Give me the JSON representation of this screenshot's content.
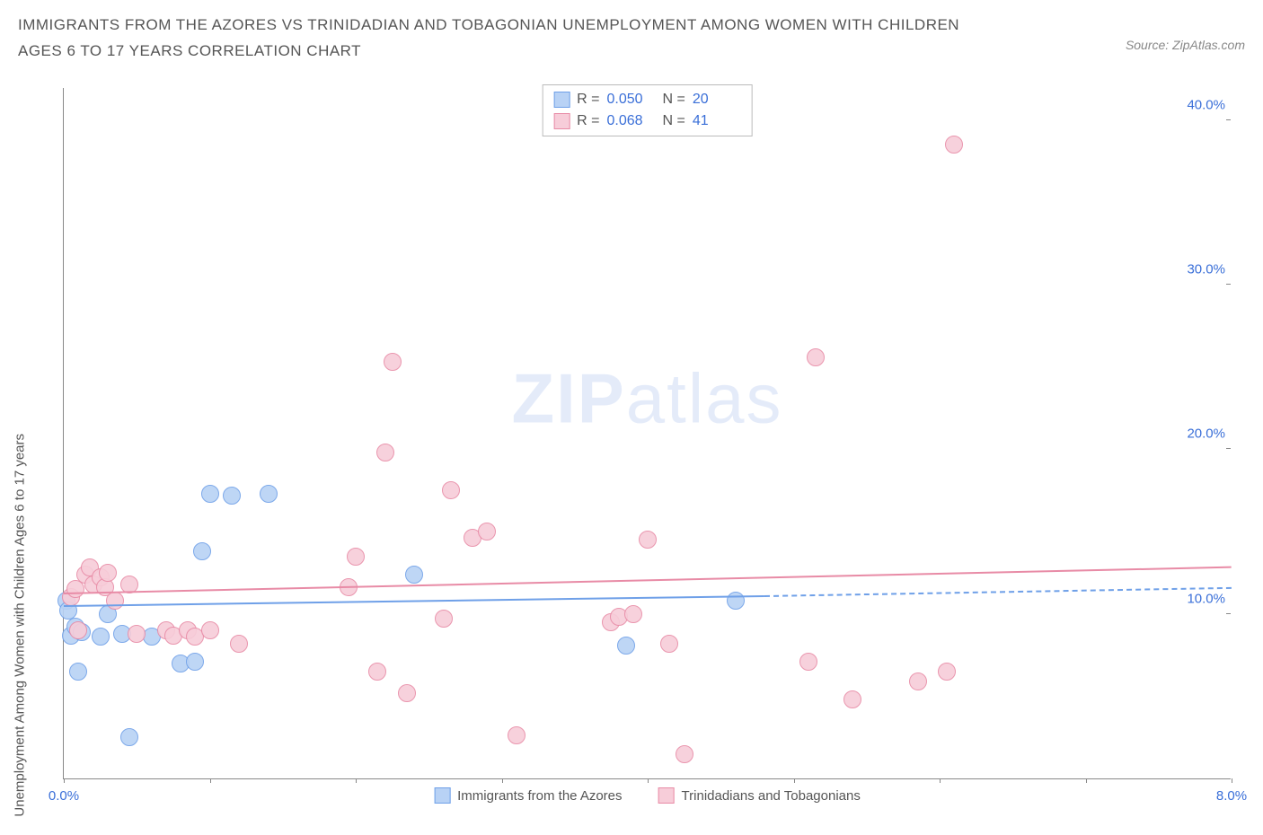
{
  "title": "IMMIGRANTS FROM THE AZORES VS TRINIDADIAN AND TOBAGONIAN UNEMPLOYMENT AMONG WOMEN WITH CHILDREN AGES 6 TO 17 YEARS CORRELATION CHART",
  "source": "Source: ZipAtlas.com",
  "ylabel": "Unemployment Among Women with Children Ages 6 to 17 years",
  "watermark_a": "ZIP",
  "watermark_b": "atlas",
  "chart": {
    "type": "scatter",
    "xlim": [
      0,
      8
    ],
    "ylim": [
      0,
      42
    ],
    "x_ticks": [
      0,
      1,
      2,
      3,
      4,
      5,
      6,
      7,
      8
    ],
    "x_tick_labels": {
      "0": "0.0%",
      "8": "8.0%"
    },
    "y_ticks": [
      10,
      20,
      30,
      40
    ],
    "y_tick_labels": {
      "10": "10.0%",
      "20": "20.0%",
      "30": "30.0%",
      "40": "40.0%"
    },
    "background_color": "#ffffff",
    "axis_color": "#888888",
    "tick_label_color": "#3a6fd8",
    "label_color": "#555555",
    "label_fontsize": 15,
    "tick_fontsize": 15,
    "point_radius": 10,
    "point_opacity_fill": 0.35,
    "series": [
      {
        "name": "Immigrants from the Azores",
        "color": "#6fa0e8",
        "fill": "#b8d2f5",
        "R": "0.050",
        "N": "20",
        "trend": {
          "x1": 0,
          "y1": 10.4,
          "x2": 4.8,
          "y2": 11.0,
          "solid": true,
          "dash_x2": 8,
          "dash_y2": 11.5
        },
        "points": [
          [
            0.02,
            10.8
          ],
          [
            0.03,
            10.2
          ],
          [
            0.05,
            8.7
          ],
          [
            0.08,
            9.2
          ],
          [
            0.12,
            8.9
          ],
          [
            0.1,
            6.5
          ],
          [
            0.25,
            8.6
          ],
          [
            0.4,
            8.8
          ],
          [
            0.45,
            2.5
          ],
          [
            0.6,
            8.6
          ],
          [
            0.8,
            7.0
          ],
          [
            0.9,
            7.1
          ],
          [
            0.95,
            13.8
          ],
          [
            1.0,
            17.3
          ],
          [
            1.15,
            17.2
          ],
          [
            1.4,
            17.3
          ],
          [
            2.4,
            12.4
          ],
          [
            3.85,
            8.1
          ],
          [
            4.6,
            10.8
          ],
          [
            0.3,
            10.0
          ]
        ]
      },
      {
        "name": "Trinidadians and Tobagonians",
        "color": "#e88ba6",
        "fill": "#f7cdd9",
        "R": "0.068",
        "N": "41",
        "trend": {
          "x1": 0,
          "y1": 11.2,
          "x2": 8,
          "y2": 12.8,
          "solid": true
        },
        "points": [
          [
            0.05,
            11.0
          ],
          [
            0.08,
            11.5
          ],
          [
            0.1,
            9.0
          ],
          [
            0.15,
            12.4
          ],
          [
            0.18,
            12.8
          ],
          [
            0.2,
            11.8
          ],
          [
            0.25,
            12.2
          ],
          [
            0.28,
            11.6
          ],
          [
            0.3,
            12.5
          ],
          [
            0.35,
            10.8
          ],
          [
            0.45,
            11.8
          ],
          [
            0.5,
            8.8
          ],
          [
            0.7,
            9.0
          ],
          [
            0.75,
            8.7
          ],
          [
            0.85,
            9.0
          ],
          [
            0.9,
            8.6
          ],
          [
            1.0,
            9.0
          ],
          [
            1.2,
            8.2
          ],
          [
            1.95,
            11.6
          ],
          [
            2.0,
            13.5
          ],
          [
            2.15,
            6.5
          ],
          [
            2.2,
            19.8
          ],
          [
            2.25,
            25.3
          ],
          [
            2.35,
            5.2
          ],
          [
            2.65,
            17.5
          ],
          [
            2.6,
            9.7
          ],
          [
            2.8,
            14.6
          ],
          [
            2.9,
            15.0
          ],
          [
            3.1,
            2.6
          ],
          [
            3.75,
            9.5
          ],
          [
            3.8,
            9.8
          ],
          [
            3.9,
            10.0
          ],
          [
            4.0,
            14.5
          ],
          [
            4.15,
            8.2
          ],
          [
            4.25,
            1.5
          ],
          [
            5.1,
            7.1
          ],
          [
            5.15,
            25.6
          ],
          [
            5.4,
            4.8
          ],
          [
            5.85,
            5.9
          ],
          [
            6.05,
            6.5
          ],
          [
            6.1,
            38.5
          ]
        ]
      }
    ],
    "legend_top": {
      "r_label": "R =",
      "n_label": "N ="
    },
    "legend_bottom": [
      "Immigrants from the Azores",
      "Trinidadians and Tobagonians"
    ]
  }
}
